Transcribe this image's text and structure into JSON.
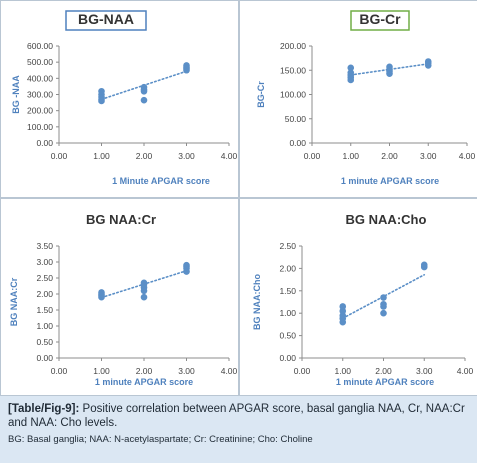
{
  "chart_data": [
    {
      "type": "scatter",
      "title": "BG-NAA",
      "title_box_color": "#4f81bd",
      "xlabel": "1 Minute APGAR score",
      "ylabel": "BG -NAA",
      "xlim": [
        0,
        4
      ],
      "ylim": [
        0,
        600
      ],
      "x_ticks": [
        "0.00",
        "1.00",
        "2.00",
        "3.00",
        "4.00"
      ],
      "y_ticks": [
        "0.00",
        "100.00",
        "200.00",
        "300.00",
        "400.00",
        "500.00",
        "600.00"
      ],
      "grid": false,
      "trendline": "linear dotted",
      "marker_color": "#5b8fc7",
      "points": [
        [
          1,
          260
        ],
        [
          1,
          270
        ],
        [
          1,
          285
        ],
        [
          1,
          300
        ],
        [
          1,
          320
        ],
        [
          2,
          265
        ],
        [
          2,
          320
        ],
        [
          2,
          330
        ],
        [
          2,
          345
        ],
        [
          3,
          450
        ],
        [
          3,
          460
        ],
        [
          3,
          470
        ],
        [
          3,
          480
        ]
      ]
    },
    {
      "type": "scatter",
      "title": "BG-Cr",
      "title_box_color": "#70ad47",
      "xlabel": "1 minute APGAR score",
      "ylabel": "BG-Cr",
      "xlim": [
        0,
        4
      ],
      "ylim": [
        0,
        200
      ],
      "x_ticks": [
        "0.00",
        "1.00",
        "2.00",
        "3.00",
        "4.00"
      ],
      "y_ticks": [
        "0.00",
        "50.00",
        "100.00",
        "150.00",
        "200.00"
      ],
      "grid": false,
      "trendline": "linear dotted",
      "marker_color": "#5b8fc7",
      "points": [
        [
          1,
          130
        ],
        [
          1,
          135
        ],
        [
          1,
          140
        ],
        [
          1,
          145
        ],
        [
          1,
          155
        ],
        [
          2,
          143
        ],
        [
          2,
          148
        ],
        [
          2,
          152
        ],
        [
          2,
          157
        ],
        [
          3,
          160
        ],
        [
          3,
          165
        ],
        [
          3,
          168
        ]
      ]
    },
    {
      "type": "scatter",
      "title": "BG NAA:Cr",
      "xlabel": "1 minute APGAR score",
      "ylabel": "BG NAA:Cr",
      "xlim": [
        0,
        4
      ],
      "ylim": [
        0,
        3.5
      ],
      "x_ticks": [
        "0.00",
        "1.00",
        "2.00",
        "3.00",
        "4.00"
      ],
      "y_ticks": [
        "0.00",
        "0.50",
        "1.00",
        "1.50",
        "2.00",
        "2.50",
        "3.00",
        "3.50"
      ],
      "grid": false,
      "trendline": "linear dotted",
      "marker_color": "#5b8fc7",
      "points": [
        [
          1,
          1.9
        ],
        [
          1,
          1.95
        ],
        [
          1,
          2.0
        ],
        [
          1,
          2.05
        ],
        [
          2,
          1.9
        ],
        [
          2,
          2.1
        ],
        [
          2,
          2.2
        ],
        [
          2,
          2.3
        ],
        [
          2,
          2.35
        ],
        [
          3,
          2.7
        ],
        [
          3,
          2.8
        ],
        [
          3,
          2.85
        ],
        [
          3,
          2.9
        ]
      ]
    },
    {
      "type": "scatter",
      "title": "BG NAA:Cho",
      "xlabel": "1 minute APGAR score",
      "ylabel": "BG NAA:Cho",
      "xlim": [
        0,
        4
      ],
      "ylim": [
        0,
        2.5
      ],
      "x_ticks": [
        "0.00",
        "1.00",
        "2.00",
        "3.00",
        "4.00"
      ],
      "y_ticks": [
        "0.00",
        "0.50",
        "1.00",
        "1.50",
        "2.00",
        "2.50"
      ],
      "grid": false,
      "trendline": "linear dotted",
      "marker_color": "#5b8fc7",
      "points": [
        [
          1,
          0.8
        ],
        [
          1,
          0.88
        ],
        [
          1,
          0.95
        ],
        [
          1,
          1.05
        ],
        [
          1,
          1.15
        ],
        [
          2,
          1.0
        ],
        [
          2,
          1.15
        ],
        [
          2,
          1.2
        ],
        [
          2,
          1.35
        ],
        [
          3,
          2.03
        ],
        [
          3,
          2.08
        ]
      ]
    }
  ],
  "caption": {
    "label": "[Table/Fig-9]:",
    "text": "Positive correlation between APGAR score, basal ganglia NAA, Cr, NAA:Cr and NAA: Cho levels.",
    "abbreviations": "BG: Basal ganglia; NAA: N-acetylaspartate; Cr: Creatinine; Cho: Choline"
  },
  "colors": {
    "panel_border": "#b9c6d3",
    "axis": "#8c8c8c",
    "marker": "#5b8fc7",
    "trendline": "#5b8fc7",
    "axis_label": "#4f81bd",
    "caption_background": "#dbe7f3"
  }
}
